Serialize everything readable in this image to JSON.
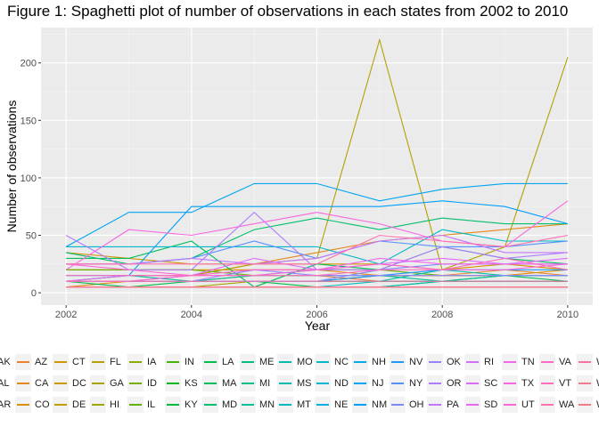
{
  "chart_data": {
    "type": "line",
    "title": "Figure 1: Spaghetti plot of number of observations in each states from 2002 to 2010",
    "xlabel": "Year",
    "ylabel": "Number of observations",
    "xlim": [
      2002,
      2010
    ],
    "ylim": [
      0,
      225
    ],
    "x_ticks": [
      "2002",
      "2004",
      "2006",
      "2008",
      "2010"
    ],
    "y_ticks": [
      "0",
      "50",
      "100",
      "150",
      "200"
    ],
    "x": [
      2002,
      2003,
      2004,
      2005,
      2006,
      2007,
      2008,
      2009,
      2010
    ],
    "grid": true,
    "legend_position": "bottom",
    "series": [
      {
        "name": "AK",
        "color": "#F8766D",
        "values": [
          5,
          5,
          5,
          5,
          5,
          5,
          5,
          5,
          5
        ]
      },
      {
        "name": "AL",
        "color": "#F47B59",
        "values": [
          5,
          5,
          5,
          5,
          5,
          5,
          5,
          5,
          5
        ]
      },
      {
        "name": "AR",
        "color": "#EF7F46",
        "values": [
          10,
          10,
          10,
          15,
          15,
          10,
          10,
          10,
          10
        ]
      },
      {
        "name": "AZ",
        "color": "#EA8331",
        "values": [
          10,
          10,
          10,
          10,
          10,
          15,
          15,
          20,
          15
        ]
      },
      {
        "name": "CA",
        "color": "#E3881A",
        "values": [
          5,
          10,
          15,
          25,
          35,
          45,
          50,
          55,
          60
        ]
      },
      {
        "name": "CO",
        "color": "#DB8E00",
        "values": [
          20,
          20,
          20,
          20,
          20,
          15,
          15,
          15,
          20
        ]
      },
      {
        "name": "CT",
        "color": "#D29300",
        "values": [
          35,
          30,
          25,
          25,
          25,
          25,
          20,
          25,
          20
        ]
      },
      {
        "name": "DC",
        "color": "#C99800",
        "values": [
          5,
          5,
          5,
          5,
          5,
          5,
          5,
          5,
          5
        ]
      },
      {
        "name": "DE",
        "color": "#BF9C00",
        "values": [
          5,
          5,
          5,
          5,
          5,
          5,
          5,
          5,
          5
        ]
      },
      {
        "name": "FL",
        "color": "#B4A000",
        "values": [
          10,
          15,
          15,
          25,
          30,
          220,
          20,
          40,
          205
        ]
      },
      {
        "name": "GA",
        "color": "#A8A400",
        "values": [
          5,
          5,
          5,
          10,
          10,
          15,
          15,
          15,
          15
        ]
      },
      {
        "name": "HI",
        "color": "#9AA800",
        "values": [
          5,
          5,
          5,
          5,
          5,
          5,
          5,
          5,
          5
        ]
      },
      {
        "name": "IA",
        "color": "#8AAB00",
        "values": [
          5,
          5,
          5,
          5,
          5,
          5,
          5,
          5,
          5
        ]
      },
      {
        "name": "ID",
        "color": "#78AF00",
        "values": [
          5,
          5,
          5,
          5,
          5,
          5,
          5,
          5,
          5
        ]
      },
      {
        "name": "IL",
        "color": "#63B200",
        "values": [
          20,
          20,
          20,
          15,
          20,
          20,
          15,
          15,
          15
        ]
      },
      {
        "name": "IN",
        "color": "#45B500",
        "values": [
          5,
          5,
          5,
          5,
          5,
          5,
          5,
          5,
          5
        ]
      },
      {
        "name": "KS",
        "color": "#00B81F",
        "values": [
          10,
          10,
          10,
          10,
          10,
          10,
          10,
          10,
          10
        ]
      },
      {
        "name": "KY",
        "color": "#00BA38",
        "values": [
          10,
          10,
          10,
          10,
          10,
          10,
          10,
          10,
          10
        ]
      },
      {
        "name": "LA",
        "color": "#00BC4C",
        "values": [
          10,
          5,
          10,
          10,
          5,
          5,
          10,
          15,
          10
        ]
      },
      {
        "name": "MA",
        "color": "#00BE5D",
        "values": [
          30,
          30,
          45,
          5,
          25,
          20,
          40,
          30,
          25
        ]
      },
      {
        "name": "MD",
        "color": "#00BF6D",
        "values": [
          35,
          25,
          30,
          55,
          65,
          55,
          65,
          60,
          60
        ]
      },
      {
        "name": "ME",
        "color": "#00C07B",
        "values": [
          5,
          5,
          5,
          5,
          5,
          5,
          5,
          5,
          5
        ]
      },
      {
        "name": "MI",
        "color": "#00C08A",
        "values": [
          10,
          10,
          10,
          10,
          10,
          10,
          10,
          10,
          10
        ]
      },
      {
        "name": "MN",
        "color": "#00C097",
        "values": [
          10,
          15,
          10,
          15,
          15,
          15,
          10,
          15,
          15
        ]
      },
      {
        "name": "MO",
        "color": "#00BFA4",
        "values": [
          10,
          10,
          10,
          10,
          10,
          10,
          20,
          15,
          15
        ]
      },
      {
        "name": "MS",
        "color": "#00BDB0",
        "values": [
          5,
          5,
          5,
          5,
          5,
          5,
          10,
          10,
          10
        ]
      },
      {
        "name": "MT",
        "color": "#00BBBD",
        "values": [
          5,
          5,
          5,
          5,
          5,
          10,
          10,
          10,
          10
        ]
      },
      {
        "name": "NC",
        "color": "#00B8C8",
        "values": [
          40,
          40,
          40,
          40,
          40,
          25,
          55,
          45,
          45
        ]
      },
      {
        "name": "ND",
        "color": "#00B4D3",
        "values": [
          5,
          5,
          5,
          5,
          5,
          5,
          5,
          5,
          5
        ]
      },
      {
        "name": "NE",
        "color": "#00B0DE",
        "values": [
          5,
          5,
          5,
          5,
          5,
          5,
          5,
          5,
          5
        ]
      },
      {
        "name": "NH",
        "color": "#00ABE8",
        "values": [
          5,
          5,
          5,
          5,
          5,
          5,
          5,
          5,
          5
        ]
      },
      {
        "name": "NJ",
        "color": "#00A5F1",
        "values": [
          40,
          70,
          70,
          95,
          95,
          80,
          90,
          95,
          95
        ]
      },
      {
        "name": "NM",
        "color": "#009FF9",
        "values": [
          15,
          15,
          75,
          75,
          75,
          75,
          80,
          75,
          60
        ]
      },
      {
        "name": "NV",
        "color": "#1F98FF",
        "values": [
          10,
          10,
          10,
          10,
          10,
          15,
          20,
          20,
          20
        ]
      },
      {
        "name": "NY",
        "color": "#5591FF",
        "values": [
          25,
          25,
          30,
          45,
          30,
          45,
          40,
          40,
          45
        ]
      },
      {
        "name": "OH",
        "color": "#7B8AFF",
        "values": [
          10,
          10,
          10,
          10,
          10,
          20,
          25,
          25,
          25
        ]
      },
      {
        "name": "OK",
        "color": "#9882FF",
        "values": [
          10,
          10,
          10,
          20,
          15,
          15,
          15,
          15,
          15
        ]
      },
      {
        "name": "OR",
        "color": "#AF7BFF",
        "values": [
          50,
          20,
          20,
          70,
          20,
          20,
          40,
          30,
          35
        ]
      },
      {
        "name": "PA",
        "color": "#C275FF",
        "values": [
          25,
          25,
          30,
          25,
          30,
          45,
          50,
          35,
          35
        ]
      },
      {
        "name": "RI",
        "color": "#D16FFF",
        "values": [
          5,
          5,
          5,
          5,
          5,
          5,
          5,
          5,
          5
        ]
      },
      {
        "name": "SC",
        "color": "#DE6AFD",
        "values": [
          10,
          15,
          15,
          30,
          20,
          25,
          30,
          25,
          30
        ]
      },
      {
        "name": "SD",
        "color": "#E867F5",
        "values": [
          5,
          5,
          5,
          5,
          5,
          5,
          5,
          5,
          5
        ]
      },
      {
        "name": "TN",
        "color": "#F166EC",
        "values": [
          10,
          10,
          15,
          15,
          20,
          30,
          25,
          25,
          25
        ]
      },
      {
        "name": "TX",
        "color": "#F866E1",
        "values": [
          20,
          55,
          50,
          60,
          70,
          60,
          45,
          40,
          80
        ]
      },
      {
        "name": "UT",
        "color": "#FC67D6",
        "values": [
          25,
          20,
          15,
          20,
          20,
          25,
          20,
          20,
          25
        ]
      },
      {
        "name": "VA",
        "color": "#FF6AC9",
        "values": [
          5,
          5,
          5,
          5,
          5,
          5,
          5,
          5,
          5
        ]
      },
      {
        "name": "VT",
        "color": "#FF6DBC",
        "values": [
          15,
          15,
          15,
          15,
          15,
          20,
          20,
          30,
          20
        ]
      },
      {
        "name": "WA",
        "color": "#FF71AE",
        "values": [
          25,
          25,
          25,
          25,
          25,
          50,
          45,
          40,
          50
        ]
      },
      {
        "name": "WI",
        "color": "#FD74A0",
        "values": [
          10,
          10,
          10,
          10,
          10,
          10,
          10,
          10,
          10
        ]
      },
      {
        "name": "WV",
        "color": "#FA7891",
        "values": [
          5,
          5,
          5,
          5,
          5,
          5,
          5,
          5,
          5
        ]
      },
      {
        "name": "WY",
        "color": "#F77982",
        "values": [
          5,
          5,
          5,
          5,
          5,
          5,
          5,
          5,
          5
        ]
      }
    ]
  }
}
